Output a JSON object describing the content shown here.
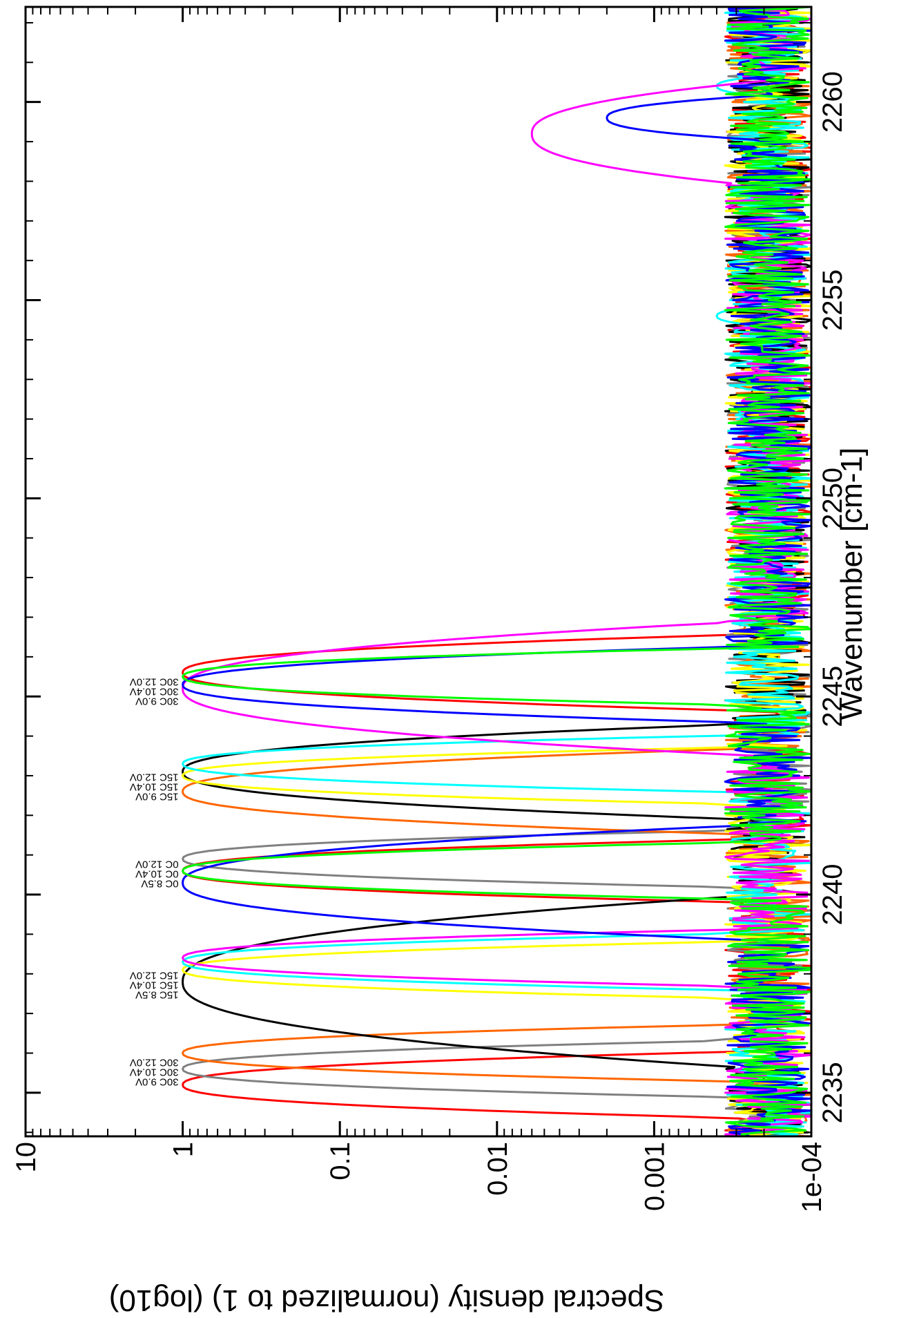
{
  "chart_data": {
    "type": "line",
    "title": "",
    "xlabel": "Wavenumber [cm-1]",
    "ylabel": "Spectral density (normalized to 1) (log10)",
    "xlim": [
      2233.9,
      2262.4
    ],
    "ylim": [
      0.0001,
      10
    ],
    "y_scale": "log",
    "orientation": "rotated 90 degrees clockwise (x axis along the right edge, y axis along the bottom edge)",
    "grid": false,
    "legend": "none",
    "x_ticks": [
      2235,
      2240,
      2245,
      2250,
      2255,
      2260
    ],
    "x_tick_labels": [
      "2235",
      "2240",
      "2245",
      "2250",
      "2255",
      "2260"
    ],
    "y_ticks": [
      0.0001,
      0.001,
      0.01,
      0.1,
      1,
      10
    ],
    "y_tick_labels": [
      "1e-04",
      "0.001",
      "0.01",
      "0.1",
      "1",
      "10"
    ],
    "noise_floor": [
      0.0001,
      0.0003
    ],
    "peak_groups": [
      {
        "labels": [
          "30C 12.0V",
          "30C 10.4V",
          "30C 9.0V"
        ],
        "label_x": 2235.6
      },
      {
        "labels": [
          "15C 12.0V",
          "15C 10.4V",
          "15C 8.5V"
        ],
        "label_x": 2237.8
      },
      {
        "labels": [
          "0C 12.0V",
          "0C 10.4V",
          "0C 8.5V"
        ],
        "label_x": 2240.6
      },
      {
        "labels": [
          "15C 12.0V",
          "15C 10.4V",
          "15C 9.0V"
        ],
        "label_x": 2242.8
      },
      {
        "labels": [
          "30C 12.0V",
          "30C 10.4V",
          "30C 9.0V"
        ],
        "label_x": 2245.2
      }
    ],
    "series": [
      {
        "color": "#ff0000",
        "peaks": [
          {
            "x": 2235.2,
            "y": 1,
            "w": 0.35
          },
          {
            "x": 2240.6,
            "y": 1,
            "w": 0.33
          },
          {
            "x": 2245.6,
            "y": 1,
            "w": 0.4
          }
        ]
      },
      {
        "color": "#808080",
        "peaks": [
          {
            "x": 2235.6,
            "y": 1,
            "w": 0.3
          },
          {
            "x": 2240.9,
            "y": 1,
            "w": 0.3
          }
        ]
      },
      {
        "color": "#ff6600",
        "peaks": [
          {
            "x": 2236.0,
            "y": 1,
            "w": 0.3
          },
          {
            "x": 2242.6,
            "y": 1,
            "w": 0.45
          }
        ]
      },
      {
        "color": "#000000",
        "peaks": [
          {
            "x": 2237.8,
            "y": 1,
            "w": 0.9
          },
          {
            "x": 2243.1,
            "y": 1,
            "w": 0.5
          }
        ]
      },
      {
        "color": "#ffff00",
        "peaks": [
          {
            "x": 2238.1,
            "y": 1,
            "w": 0.3
          },
          {
            "x": 2243.0,
            "y": 1,
            "w": 0.3
          }
        ]
      },
      {
        "color": "#00ffff",
        "peaks": [
          {
            "x": 2238.3,
            "y": 1,
            "w": 0.3
          },
          {
            "x": 2243.3,
            "y": 1,
            "w": 0.3
          },
          {
            "x": 2254.6,
            "y": 0.0004,
            "w": 0.3
          },
          {
            "x": 2260.4,
            "y": 0.0004,
            "w": 0.3
          }
        ]
      },
      {
        "color": "#ff00ff",
        "peaks": [
          {
            "x": 2238.4,
            "y": 1,
            "w": 0.3
          },
          {
            "x": 2245.2,
            "y": 1,
            "w": 0.7
          },
          {
            "x": 2259.2,
            "y": 0.006,
            "w": 0.8
          }
        ]
      },
      {
        "color": "#0000ff",
        "peaks": [
          {
            "x": 2240.3,
            "y": 1,
            "w": 0.6
          },
          {
            "x": 2245.3,
            "y": 1,
            "w": 0.4
          },
          {
            "x": 2259.6,
            "y": 0.002,
            "w": 0.4
          }
        ]
      },
      {
        "color": "#00ff00",
        "peaks": [
          {
            "x": 2240.6,
            "y": 1,
            "w": 0.3
          },
          {
            "x": 2245.5,
            "y": 1,
            "w": 0.3
          }
        ]
      }
    ]
  }
}
